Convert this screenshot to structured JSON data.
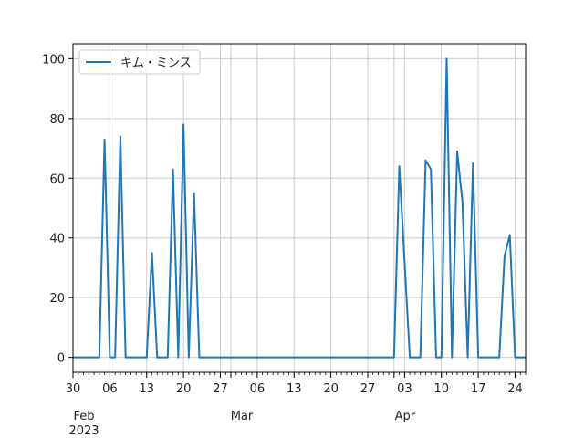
{
  "chart_data": {
    "type": "line",
    "title": "",
    "xlabel": "",
    "ylabel": "",
    "x_start": "2023-01-30",
    "x_end": "2023-04-26",
    "ylim": [
      -5,
      105
    ],
    "grid": true,
    "legend_placement": "top-left",
    "yticks": [
      0,
      20,
      40,
      60,
      80,
      100
    ],
    "xticks_major": [
      {
        "date": "2023-01-30",
        "label": "30",
        "sub": "Feb\n2023"
      },
      {
        "date": "2023-02-06",
        "label": "06"
      },
      {
        "date": "2023-02-13",
        "label": "13"
      },
      {
        "date": "2023-02-20",
        "label": "20"
      },
      {
        "date": "2023-02-27",
        "label": "27"
      },
      {
        "date": "2023-03-01",
        "label": "",
        "sub": "Mar"
      },
      {
        "date": "2023-03-06",
        "label": "06"
      },
      {
        "date": "2023-03-13",
        "label": "13"
      },
      {
        "date": "2023-03-20",
        "label": "20"
      },
      {
        "date": "2023-03-27",
        "label": "27"
      },
      {
        "date": "2023-04-01",
        "label": "",
        "sub": "Apr"
      },
      {
        "date": "2023-04-03",
        "label": "03"
      },
      {
        "date": "2023-04-10",
        "label": "10"
      },
      {
        "date": "2023-04-17",
        "label": "17"
      },
      {
        "date": "2023-04-24",
        "label": "24"
      }
    ],
    "series": [
      {
        "name": "キム・ミンス",
        "color": "#1f77b4",
        "points": [
          [
            "2023-01-30",
            0
          ],
          [
            "2023-02-04",
            0
          ],
          [
            "2023-02-05",
            73
          ],
          [
            "2023-02-06",
            0
          ],
          [
            "2023-02-07",
            0
          ],
          [
            "2023-02-08",
            74
          ],
          [
            "2023-02-09",
            0
          ],
          [
            "2023-02-13",
            0
          ],
          [
            "2023-02-14",
            35
          ],
          [
            "2023-02-15",
            0
          ],
          [
            "2023-02-17",
            0
          ],
          [
            "2023-02-18",
            63
          ],
          [
            "2023-02-19",
            0
          ],
          [
            "2023-02-20",
            78
          ],
          [
            "2023-02-21",
            0
          ],
          [
            "2023-02-22",
            55
          ],
          [
            "2023-02-23",
            0
          ],
          [
            "2023-04-01",
            0
          ],
          [
            "2023-04-02",
            64
          ],
          [
            "2023-04-04",
            0
          ],
          [
            "2023-04-06",
            0
          ],
          [
            "2023-04-07",
            66
          ],
          [
            "2023-04-08",
            63
          ],
          [
            "2023-04-09",
            0
          ],
          [
            "2023-04-10",
            0
          ],
          [
            "2023-04-11",
            100
          ],
          [
            "2023-04-12",
            0
          ],
          [
            "2023-04-13",
            69
          ],
          [
            "2023-04-14",
            52
          ],
          [
            "2023-04-15",
            0
          ],
          [
            "2023-04-16",
            65
          ],
          [
            "2023-04-17",
            0
          ],
          [
            "2023-04-21",
            0
          ],
          [
            "2023-04-22",
            34
          ],
          [
            "2023-04-23",
            41
          ],
          [
            "2023-04-24",
            0
          ],
          [
            "2023-04-26",
            0
          ]
        ]
      }
    ]
  }
}
